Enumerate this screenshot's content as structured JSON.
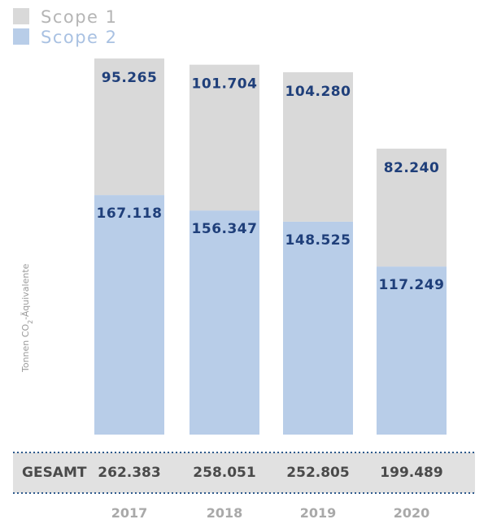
{
  "chart_data": {
    "type": "bar",
    "stacked": true,
    "categories": [
      "2017",
      "2018",
      "2019",
      "2020"
    ],
    "series": [
      {
        "name": "Scope 1",
        "values": [
          95265,
          101704,
          104280,
          82240
        ],
        "labels": [
          "95.265",
          "101.704",
          "104.280",
          "82.240"
        ],
        "color": "#d9d9d9"
      },
      {
        "name": "Scope 2",
        "values": [
          167118,
          156347,
          148525,
          117249
        ],
        "labels": [
          "167.118",
          "156.347",
          "148.525",
          "117.249"
        ],
        "color": "#b8cde8"
      }
    ],
    "ylabel": "Tonnen CO",
    "ylabel_sub": "2",
    "ylabel_rest": "-Äquivalente",
    "ylim": [
      0,
      270000
    ],
    "legend_position": "top-left",
    "grid": false,
    "totals": {
      "label": "GESAMT",
      "values": [
        "262.383",
        "258.051",
        "252.805",
        "199.489"
      ]
    }
  },
  "colors": {
    "scope1": "#d9d9d9",
    "scope2": "#b8cde8",
    "value_text": "#1f3f7a",
    "legend_scope1_text": "#b5b5b5",
    "legend_scope2_text": "#a9c1e2",
    "total_band": "#e1e1e1",
    "dotted_line": "#2e5a8c"
  }
}
